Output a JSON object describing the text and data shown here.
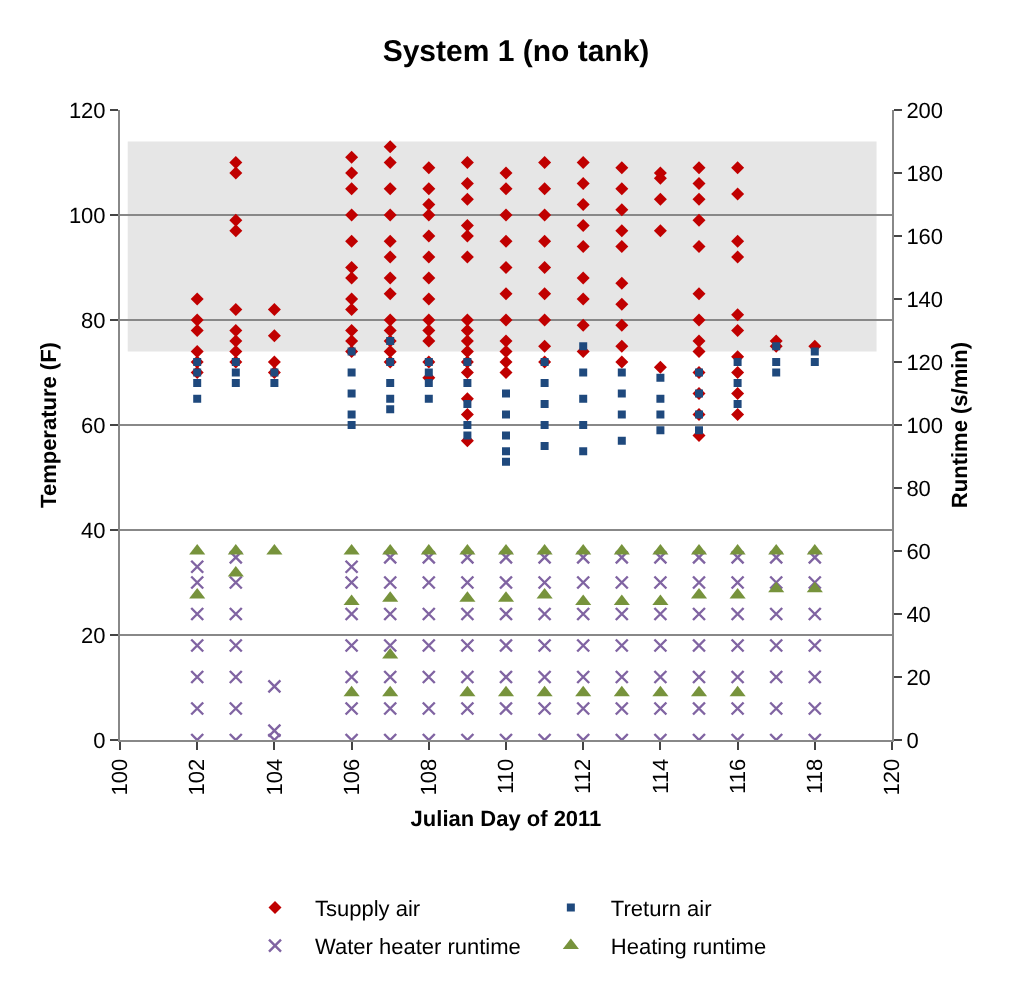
{
  "chart_data": {
    "type": "scatter",
    "title": "System 1 (no tank)",
    "xlabel": "Julian Day of 2011",
    "ylabel": "Temperature (F)",
    "y2label": "Runtime (s/min)",
    "xlim": [
      100,
      120
    ],
    "xticks": [
      100,
      102,
      104,
      106,
      108,
      110,
      112,
      114,
      116,
      118,
      120
    ],
    "ylim": [
      0,
      120
    ],
    "yticks": [
      0,
      20,
      40,
      60,
      80,
      100,
      120
    ],
    "y2lim": [
      0,
      200
    ],
    "y2ticks": [
      0,
      20,
      40,
      60,
      80,
      100,
      120,
      140,
      160,
      180,
      200
    ],
    "grid": "y",
    "legend": "bottom",
    "bands": [
      {
        "axis": "y",
        "from": 74,
        "to": 114,
        "color": "#e6e6e6"
      }
    ],
    "series": [
      {
        "name": "Tsupply air",
        "color": "#c00000",
        "marker": "diamond",
        "x": [
          102,
          102,
          102,
          102,
          102,
          102,
          103,
          103,
          103,
          103,
          103,
          103,
          103,
          103,
          103,
          104,
          104,
          104,
          104,
          106,
          106,
          106,
          106,
          106,
          106,
          106,
          106,
          106,
          106,
          106,
          106,
          107,
          107,
          107,
          107,
          107,
          107,
          107,
          107,
          107,
          107,
          107,
          107,
          107,
          108,
          108,
          108,
          108,
          108,
          108,
          108,
          108,
          108,
          108,
          108,
          108,
          108,
          109,
          109,
          109,
          109,
          109,
          109,
          109,
          109,
          109,
          109,
          109,
          109,
          109,
          109,
          109,
          110,
          110,
          110,
          110,
          110,
          110,
          110,
          110,
          110,
          110,
          110,
          111,
          111,
          111,
          111,
          111,
          111,
          111,
          111,
          111,
          112,
          112,
          112,
          112,
          112,
          112,
          112,
          112,
          112,
          113,
          113,
          113,
          113,
          113,
          113,
          113,
          113,
          113,
          113,
          114,
          114,
          114,
          114,
          114,
          115,
          115,
          115,
          115,
          115,
          115,
          115,
          115,
          115,
          115,
          115,
          115,
          115,
          116,
          116,
          116,
          116,
          116,
          116,
          116,
          116,
          116,
          116,
          117,
          117,
          118
        ],
        "values": [
          84,
          80,
          78,
          74,
          72,
          70,
          110,
          108,
          99,
          97,
          82,
          78,
          76,
          74,
          72,
          82,
          77,
          72,
          70,
          111,
          108,
          105,
          100,
          95,
          90,
          88,
          84,
          82,
          78,
          76,
          74,
          113,
          110,
          105,
          100,
          95,
          92,
          88,
          85,
          80,
          78,
          76,
          74,
          72,
          109,
          105,
          102,
          100,
          96,
          92,
          88,
          84,
          80,
          78,
          76,
          72,
          69,
          110,
          106,
          103,
          98,
          96,
          92,
          80,
          78,
          76,
          74,
          72,
          70,
          65,
          62,
          57,
          108,
          105,
          100,
          95,
          90,
          85,
          80,
          76,
          74,
          72,
          70,
          110,
          105,
          100,
          95,
          90,
          85,
          80,
          75,
          72,
          110,
          106,
          102,
          98,
          94,
          88,
          84,
          79,
          74,
          109,
          105,
          101,
          97,
          94,
          87,
          83,
          79,
          75,
          72,
          108,
          107,
          103,
          97,
          71,
          109,
          106,
          103,
          99,
          94,
          85,
          80,
          76,
          74,
          70,
          66,
          62,
          58,
          109,
          104,
          95,
          92,
          81,
          78,
          73,
          70,
          66,
          62,
          76,
          75,
          75
        ]
      },
      {
        "name": "Treturn air",
        "color": "#1f497d",
        "marker": "square",
        "x": [
          102,
          102,
          102,
          102,
          103,
          103,
          103,
          104,
          104,
          106,
          106,
          106,
          106,
          106,
          107,
          107,
          107,
          107,
          107,
          108,
          108,
          108,
          108,
          109,
          109,
          109,
          109,
          109,
          110,
          110,
          110,
          110,
          110,
          111,
          111,
          111,
          111,
          111,
          112,
          112,
          112,
          112,
          112,
          113,
          113,
          113,
          113,
          114,
          114,
          114,
          114,
          115,
          115,
          115,
          115,
          116,
          116,
          116,
          117,
          117,
          117,
          118,
          118
        ],
        "values": [
          72,
          70,
          68,
          65,
          72,
          70,
          68,
          70,
          68,
          74,
          70,
          66,
          62,
          60,
          76,
          72,
          68,
          65,
          63,
          72,
          70,
          68,
          65,
          72,
          68,
          64,
          60,
          58,
          66,
          62,
          58,
          55,
          53,
          72,
          68,
          64,
          60,
          56,
          75,
          70,
          65,
          60,
          55,
          70,
          66,
          62,
          57,
          69,
          65,
          62,
          59,
          70,
          66,
          62,
          59,
          72,
          68,
          64,
          75,
          72,
          70,
          74,
          72
        ]
      },
      {
        "name": "Water heater runtime",
        "color": "#8064a2",
        "marker": "cross",
        "axis": "y2",
        "x": [
          102,
          102,
          102,
          102,
          102,
          102,
          102,
          103,
          103,
          103,
          103,
          103,
          103,
          103,
          104,
          104,
          104,
          106,
          106,
          106,
          106,
          106,
          106,
          106,
          107,
          107,
          107,
          107,
          107,
          107,
          107,
          108,
          108,
          108,
          108,
          108,
          108,
          108,
          109,
          109,
          109,
          109,
          109,
          109,
          109,
          110,
          110,
          110,
          110,
          110,
          110,
          110,
          111,
          111,
          111,
          111,
          111,
          111,
          111,
          112,
          112,
          112,
          112,
          112,
          112,
          112,
          113,
          113,
          113,
          113,
          113,
          113,
          113,
          114,
          114,
          114,
          114,
          114,
          114,
          114,
          115,
          115,
          115,
          115,
          115,
          115,
          115,
          116,
          116,
          116,
          116,
          116,
          116,
          116,
          117,
          117,
          117,
          117,
          117,
          117,
          117,
          118,
          118,
          118,
          118,
          118,
          118,
          118
        ],
        "values": [
          0,
          10,
          20,
          30,
          40,
          50,
          55,
          0,
          10,
          20,
          30,
          40,
          50,
          58,
          0,
          3,
          17,
          0,
          10,
          20,
          30,
          40,
          50,
          55,
          0,
          10,
          20,
          30,
          40,
          50,
          58,
          0,
          10,
          20,
          30,
          40,
          50,
          58,
          0,
          10,
          20,
          30,
          40,
          50,
          58,
          0,
          10,
          20,
          30,
          40,
          50,
          58,
          0,
          10,
          20,
          30,
          40,
          50,
          58,
          0,
          10,
          20,
          30,
          40,
          50,
          58,
          0,
          10,
          20,
          30,
          40,
          50,
          58,
          0,
          10,
          20,
          30,
          40,
          50,
          58,
          0,
          10,
          20,
          30,
          40,
          50,
          58,
          0,
          10,
          20,
          30,
          40,
          50,
          58,
          0,
          10,
          20,
          30,
          40,
          50,
          58,
          0,
          10,
          20,
          30,
          40,
          50,
          58
        ]
      },
      {
        "name": "Heating runtime",
        "color": "#77933c",
        "marker": "triangle",
        "axis": "y2",
        "x": [
          102,
          102,
          103,
          103,
          104,
          106,
          106,
          106,
          107,
          107,
          107,
          107,
          108,
          109,
          109,
          109,
          110,
          110,
          110,
          111,
          111,
          111,
          112,
          112,
          112,
          113,
          113,
          113,
          114,
          114,
          114,
          115,
          115,
          115,
          116,
          116,
          116,
          117,
          117,
          118,
          118
        ],
        "values": [
          60,
          46,
          60,
          53,
          60,
          60,
          44,
          15,
          60,
          45,
          27,
          15,
          60,
          60,
          45,
          15,
          60,
          45,
          15,
          60,
          46,
          15,
          60,
          44,
          15,
          60,
          44,
          15,
          60,
          44,
          15,
          60,
          46,
          15,
          60,
          46,
          15,
          60,
          48,
          60,
          48
        ]
      }
    ]
  }
}
